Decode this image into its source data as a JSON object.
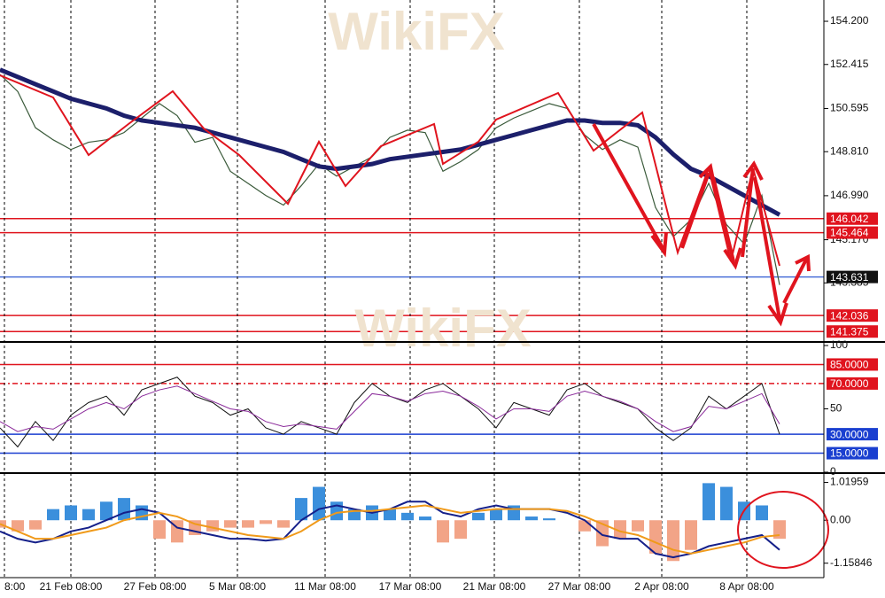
{
  "watermark": "WikiFX",
  "chart_data": [
    {
      "type": "line",
      "x": [
        0,
        2,
        4,
        6,
        8,
        10,
        12,
        14,
        16,
        18,
        20,
        22,
        24,
        26,
        28,
        30,
        32,
        34,
        36,
        38,
        40,
        42,
        44,
        46,
        48,
        50,
        52,
        54,
        56,
        58,
        60,
        62,
        64,
        66,
        68,
        70,
        72,
        74,
        76,
        78,
        80,
        82,
        84,
        86,
        88
      ],
      "xlim": [
        0,
        93
      ],
      "ylim": [
        140.98,
        155.08
      ],
      "yticks": [
        {
          "value": 154.2,
          "label": "154.200"
        },
        152.415,
        150.595,
        {
          "value": 148.81,
          "label": "148.810"
        },
        {
          "value": 146.99,
          "label": "146.990"
        },
        {
          "value": 145.17,
          "label": "145.170"
        },
        143.385
      ],
      "series": [
        {
          "color": "#3a5a3a",
          "width": 1.2,
          "values": [
            152.0,
            151.3,
            149.8,
            149.3,
            148.9,
            149.2,
            149.3,
            149.6,
            150.2,
            150.8,
            150.3,
            149.2,
            149.4,
            148.0,
            147.5,
            147.0,
            146.6,
            147.4,
            148.3,
            147.8,
            148.2,
            148.6,
            149.4,
            149.7,
            149.6,
            148.0,
            148.4,
            148.9,
            149.8,
            150.2,
            150.5,
            150.8,
            150.6,
            149.5,
            148.9,
            149.3,
            149.0,
            146.5,
            145.3,
            146.0,
            147.5,
            145.8,
            145.0,
            147.0,
            143.3
          ]
        },
        {
          "color": "#1c1f6b",
          "width": 5,
          "values": [
            152.2,
            151.9,
            151.6,
            151.3,
            151.0,
            150.8,
            150.6,
            150.3,
            150.1,
            150.0,
            149.9,
            149.8,
            149.6,
            149.4,
            149.2,
            149.0,
            148.8,
            148.5,
            148.2,
            148.1,
            148.2,
            148.3,
            148.5,
            148.6,
            148.7,
            148.8,
            148.9,
            149.1,
            149.3,
            149.5,
            149.7,
            149.9,
            150.1,
            150.1,
            150.0,
            150.0,
            149.9,
            149.4,
            148.7,
            148.1,
            147.8,
            147.4,
            147.0,
            146.6,
            146.2
          ]
        }
      ],
      "levels": [
        {
          "value": 146.042,
          "color": "#e0141e",
          "box_color": "#e0141e"
        },
        {
          "value": 145.464,
          "color": "#e0141e",
          "box_color": "#e0141e"
        },
        {
          "value": 143.631,
          "color": "#4a6fd8",
          "box_color": "#111111"
        },
        {
          "value": 142.036,
          "color": "#e0141e",
          "box_color": "#e0141e"
        },
        {
          "value": 141.375,
          "color": "#e0141e",
          "box_color": "#e0141e"
        }
      ]
    },
    {
      "type": "line",
      "x": [
        0,
        2,
        4,
        6,
        8,
        10,
        12,
        14,
        16,
        18,
        20,
        22,
        24,
        26,
        28,
        30,
        32,
        34,
        36,
        38,
        40,
        42,
        44,
        46,
        48,
        50,
        52,
        54,
        56,
        58,
        60,
        62,
        64,
        66,
        68,
        70,
        72,
        74,
        76,
        78,
        80,
        82,
        84,
        86,
        88
      ],
      "xlim": [
        0,
        93
      ],
      "ylim": [
        0,
        100
      ],
      "yticks": [
        100,
        50,
        0
      ],
      "series": [
        {
          "color": "#111111",
          "width": 1,
          "values": [
            35,
            20,
            40,
            25,
            45,
            55,
            60,
            45,
            65,
            70,
            75,
            60,
            55,
            45,
            50,
            35,
            30,
            40,
            35,
            30,
            55,
            70,
            60,
            55,
            65,
            70,
            60,
            50,
            35,
            55,
            50,
            45,
            65,
            70,
            60,
            55,
            50,
            35,
            25,
            35,
            60,
            50,
            60,
            70,
            30
          ]
        },
        {
          "color": "#8a2a9a",
          "width": 1,
          "values": [
            40,
            32,
            36,
            34,
            42,
            50,
            55,
            50,
            60,
            65,
            68,
            62,
            56,
            50,
            48,
            40,
            36,
            38,
            36,
            34,
            48,
            62,
            60,
            56,
            62,
            64,
            60,
            52,
            42,
            50,
            50,
            48,
            60,
            64,
            60,
            56,
            50,
            40,
            32,
            36,
            52,
            50,
            56,
            62,
            38
          ]
        }
      ],
      "levels": [
        {
          "value": 85,
          "label": "85.0000",
          "color": "#e0141e",
          "box_color": "#e0141e"
        },
        {
          "value": 70,
          "label": "70.0000",
          "color": "#e0141e",
          "box_color": "#e0141e"
        },
        {
          "value": 30,
          "label": "30.0000",
          "color": "#1a3fd0",
          "box_color": "#1a3fd0"
        },
        {
          "value": 15,
          "label": "15.0000",
          "color": "#1a3fd0",
          "box_color": "#1a3fd0"
        }
      ]
    },
    {
      "type": "combo",
      "x": [
        0,
        2,
        4,
        6,
        8,
        10,
        12,
        14,
        16,
        18,
        20,
        22,
        24,
        26,
        28,
        30,
        32,
        34,
        36,
        38,
        40,
        42,
        44,
        46,
        48,
        50,
        52,
        54,
        56,
        58,
        60,
        62,
        64,
        66,
        68,
        70,
        72,
        74,
        76,
        78,
        80,
        82,
        84,
        86,
        88
      ],
      "xlim": [
        0,
        93
      ],
      "ylim": [
        -1.5,
        1.2
      ],
      "yticks": [
        1.01959,
        {
          "value": 0,
          "label": "0.00"
        },
        -1.15846
      ],
      "xticks": [
        {
          "value": 0.5,
          "label": "8:00"
        },
        {
          "value": 8,
          "label": "21 Feb 08:00"
        },
        {
          "value": 17.5,
          "label": "27 Feb 08:00"
        },
        {
          "value": 26.8,
          "label": "5 Mar 08:00"
        },
        {
          "value": 36.7,
          "label": "11 Mar 08:00"
        },
        {
          "value": 46.3,
          "label": "17 Mar 08:00"
        },
        {
          "value": 55.8,
          "label": "21 Mar 08:00"
        },
        {
          "value": 65.4,
          "label": "27 Mar 08:00"
        },
        {
          "value": 74.7,
          "label": "2 Apr 08:00"
        },
        {
          "value": 84.3,
          "label": "8 Apr 08:00"
        }
      ],
      "series": [
        {
          "type": "bar",
          "color": "#3b8fdc",
          "negative_color": "#f2a487",
          "values": [
            -0.2,
            -0.3,
            -0.25,
            0.3,
            0.4,
            0.3,
            0.5,
            0.6,
            0.4,
            -0.5,
            -0.6,
            -0.4,
            -0.3,
            -0.2,
            -0.2,
            -0.1,
            -0.2,
            0.6,
            0.9,
            0.5,
            0.3,
            0.4,
            0.3,
            0.2,
            0.1,
            -0.6,
            -0.5,
            0.2,
            0.3,
            0.4,
            0.1,
            0.05,
            0,
            -0.3,
            -0.7,
            -0.5,
            -0.3,
            -0.9,
            -1.1,
            -0.8,
            1.0,
            0.9,
            0.5,
            0.4,
            -0.5
          ]
        },
        {
          "type": "line",
          "color": "#15208a",
          "width": 2,
          "values": [
            -0.3,
            -0.5,
            -0.6,
            -0.5,
            -0.3,
            -0.2,
            0,
            0.2,
            0.3,
            0.2,
            -0.2,
            -0.3,
            -0.4,
            -0.5,
            -0.5,
            -0.55,
            -0.5,
            0,
            0.3,
            0.4,
            0.3,
            0.2,
            0.3,
            0.5,
            0.5,
            0.2,
            0.1,
            0.3,
            0.4,
            0.3,
            0.3,
            0.3,
            0.2,
            0,
            -0.4,
            -0.5,
            -0.5,
            -0.9,
            -1.0,
            -0.9,
            -0.7,
            -0.6,
            -0.5,
            -0.4,
            -0.8
          ]
        },
        {
          "type": "line",
          "color": "#f09a1a",
          "width": 2,
          "values": [
            -0.1,
            -0.3,
            -0.5,
            -0.5,
            -0.4,
            -0.3,
            -0.2,
            0,
            0.1,
            0.2,
            0.1,
            -0.1,
            -0.2,
            -0.3,
            -0.4,
            -0.45,
            -0.5,
            -0.3,
            0,
            0.2,
            0.25,
            0.25,
            0.3,
            0.35,
            0.4,
            0.3,
            0.2,
            0.25,
            0.3,
            0.3,
            0.3,
            0.3,
            0.25,
            0.1,
            -0.1,
            -0.3,
            -0.4,
            -0.6,
            -0.8,
            -0.9,
            -0.8,
            -0.7,
            -0.6,
            -0.45,
            -0.4
          ]
        }
      ]
    }
  ]
}
